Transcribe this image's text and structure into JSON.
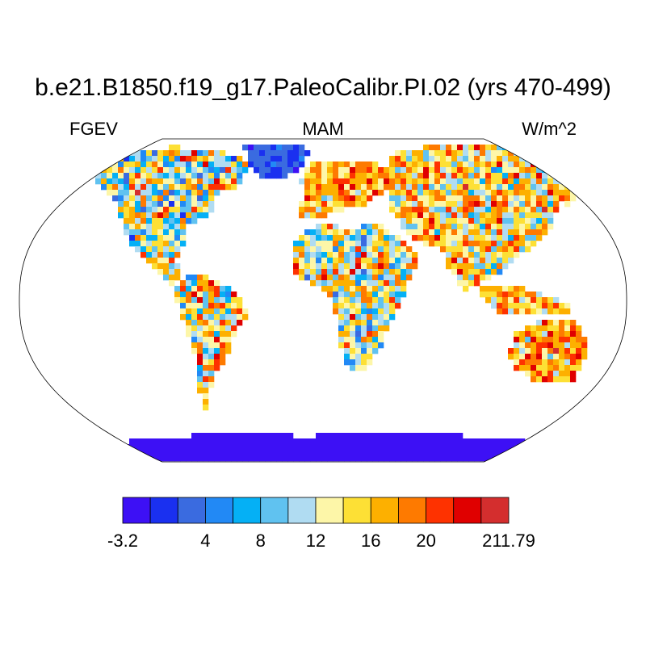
{
  "title": "b.e21.B1850.f19_g17.PaleoCalibr.PI.02 (yrs 470-499)",
  "left_label": "FGEV",
  "center_label": "MAM",
  "right_label": "W/m^2",
  "colorbar": {
    "colors": [
      "#3d10f5",
      "#1a30f0",
      "#3a6be0",
      "#2289f5",
      "#05b0f5",
      "#60c2f0",
      "#b0dcf2",
      "#fdf6a8",
      "#fde035",
      "#fdb000",
      "#fe7a00",
      "#fe3200",
      "#e00000",
      "#d42e2e"
    ],
    "tick_labels": [
      {
        "text": "-3.2",
        "boundary": 0
      },
      {
        "text": "4",
        "boundary": 3
      },
      {
        "text": "8",
        "boundary": 5
      },
      {
        "text": "12",
        "boundary": 7
      },
      {
        "text": "16",
        "boundary": 9
      },
      {
        "text": "20",
        "boundary": 11
      },
      {
        "text": "211.79",
        "boundary": 14
      }
    ]
  },
  "map": {
    "projection": "robinson",
    "field": "FGEV",
    "season": "MAM",
    "units": "W/m^2"
  }
}
